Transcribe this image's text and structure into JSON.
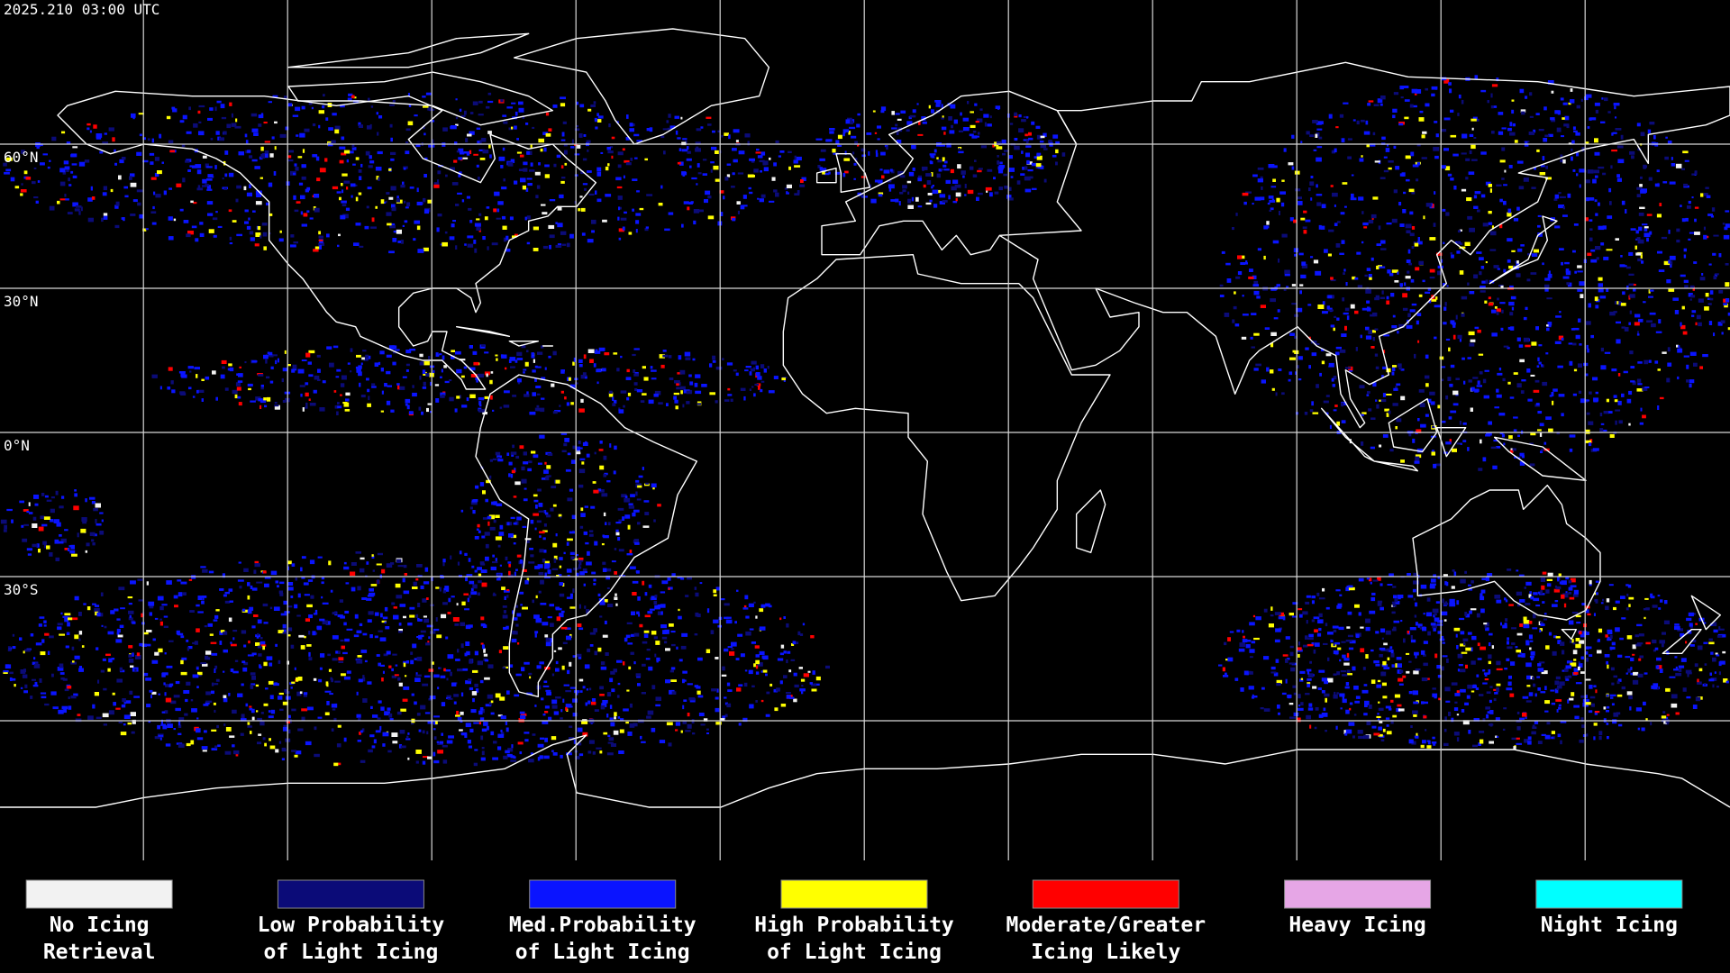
{
  "header": {
    "timestamp": "2025.210 03:00 UTC"
  },
  "map": {
    "latitude_labels": [
      "60°N",
      "30°N",
      "0°N",
      "30°S"
    ]
  },
  "legend": {
    "items": [
      {
        "lines": [
          "No Icing",
          "Retrieval"
        ],
        "color": "#f2f2f2"
      },
      {
        "lines": [
          "Low Probability",
          "of Light Icing"
        ],
        "color": "#0b0b78"
      },
      {
        "lines": [
          "Med.Probability",
          "of Light Icing"
        ],
        "color": "#0a14ff"
      },
      {
        "lines": [
          "High Probability",
          "of Light Icing"
        ],
        "color": "#ffff00"
      },
      {
        "lines": [
          "Moderate/Greater",
          "Icing Likely"
        ],
        "color": "#ff0000"
      },
      {
        "lines": [
          "Heavy Icing"
        ],
        "color": "#e6a6e6"
      },
      {
        "lines": [
          "Night Icing"
        ],
        "color": "#00ffff"
      }
    ]
  }
}
